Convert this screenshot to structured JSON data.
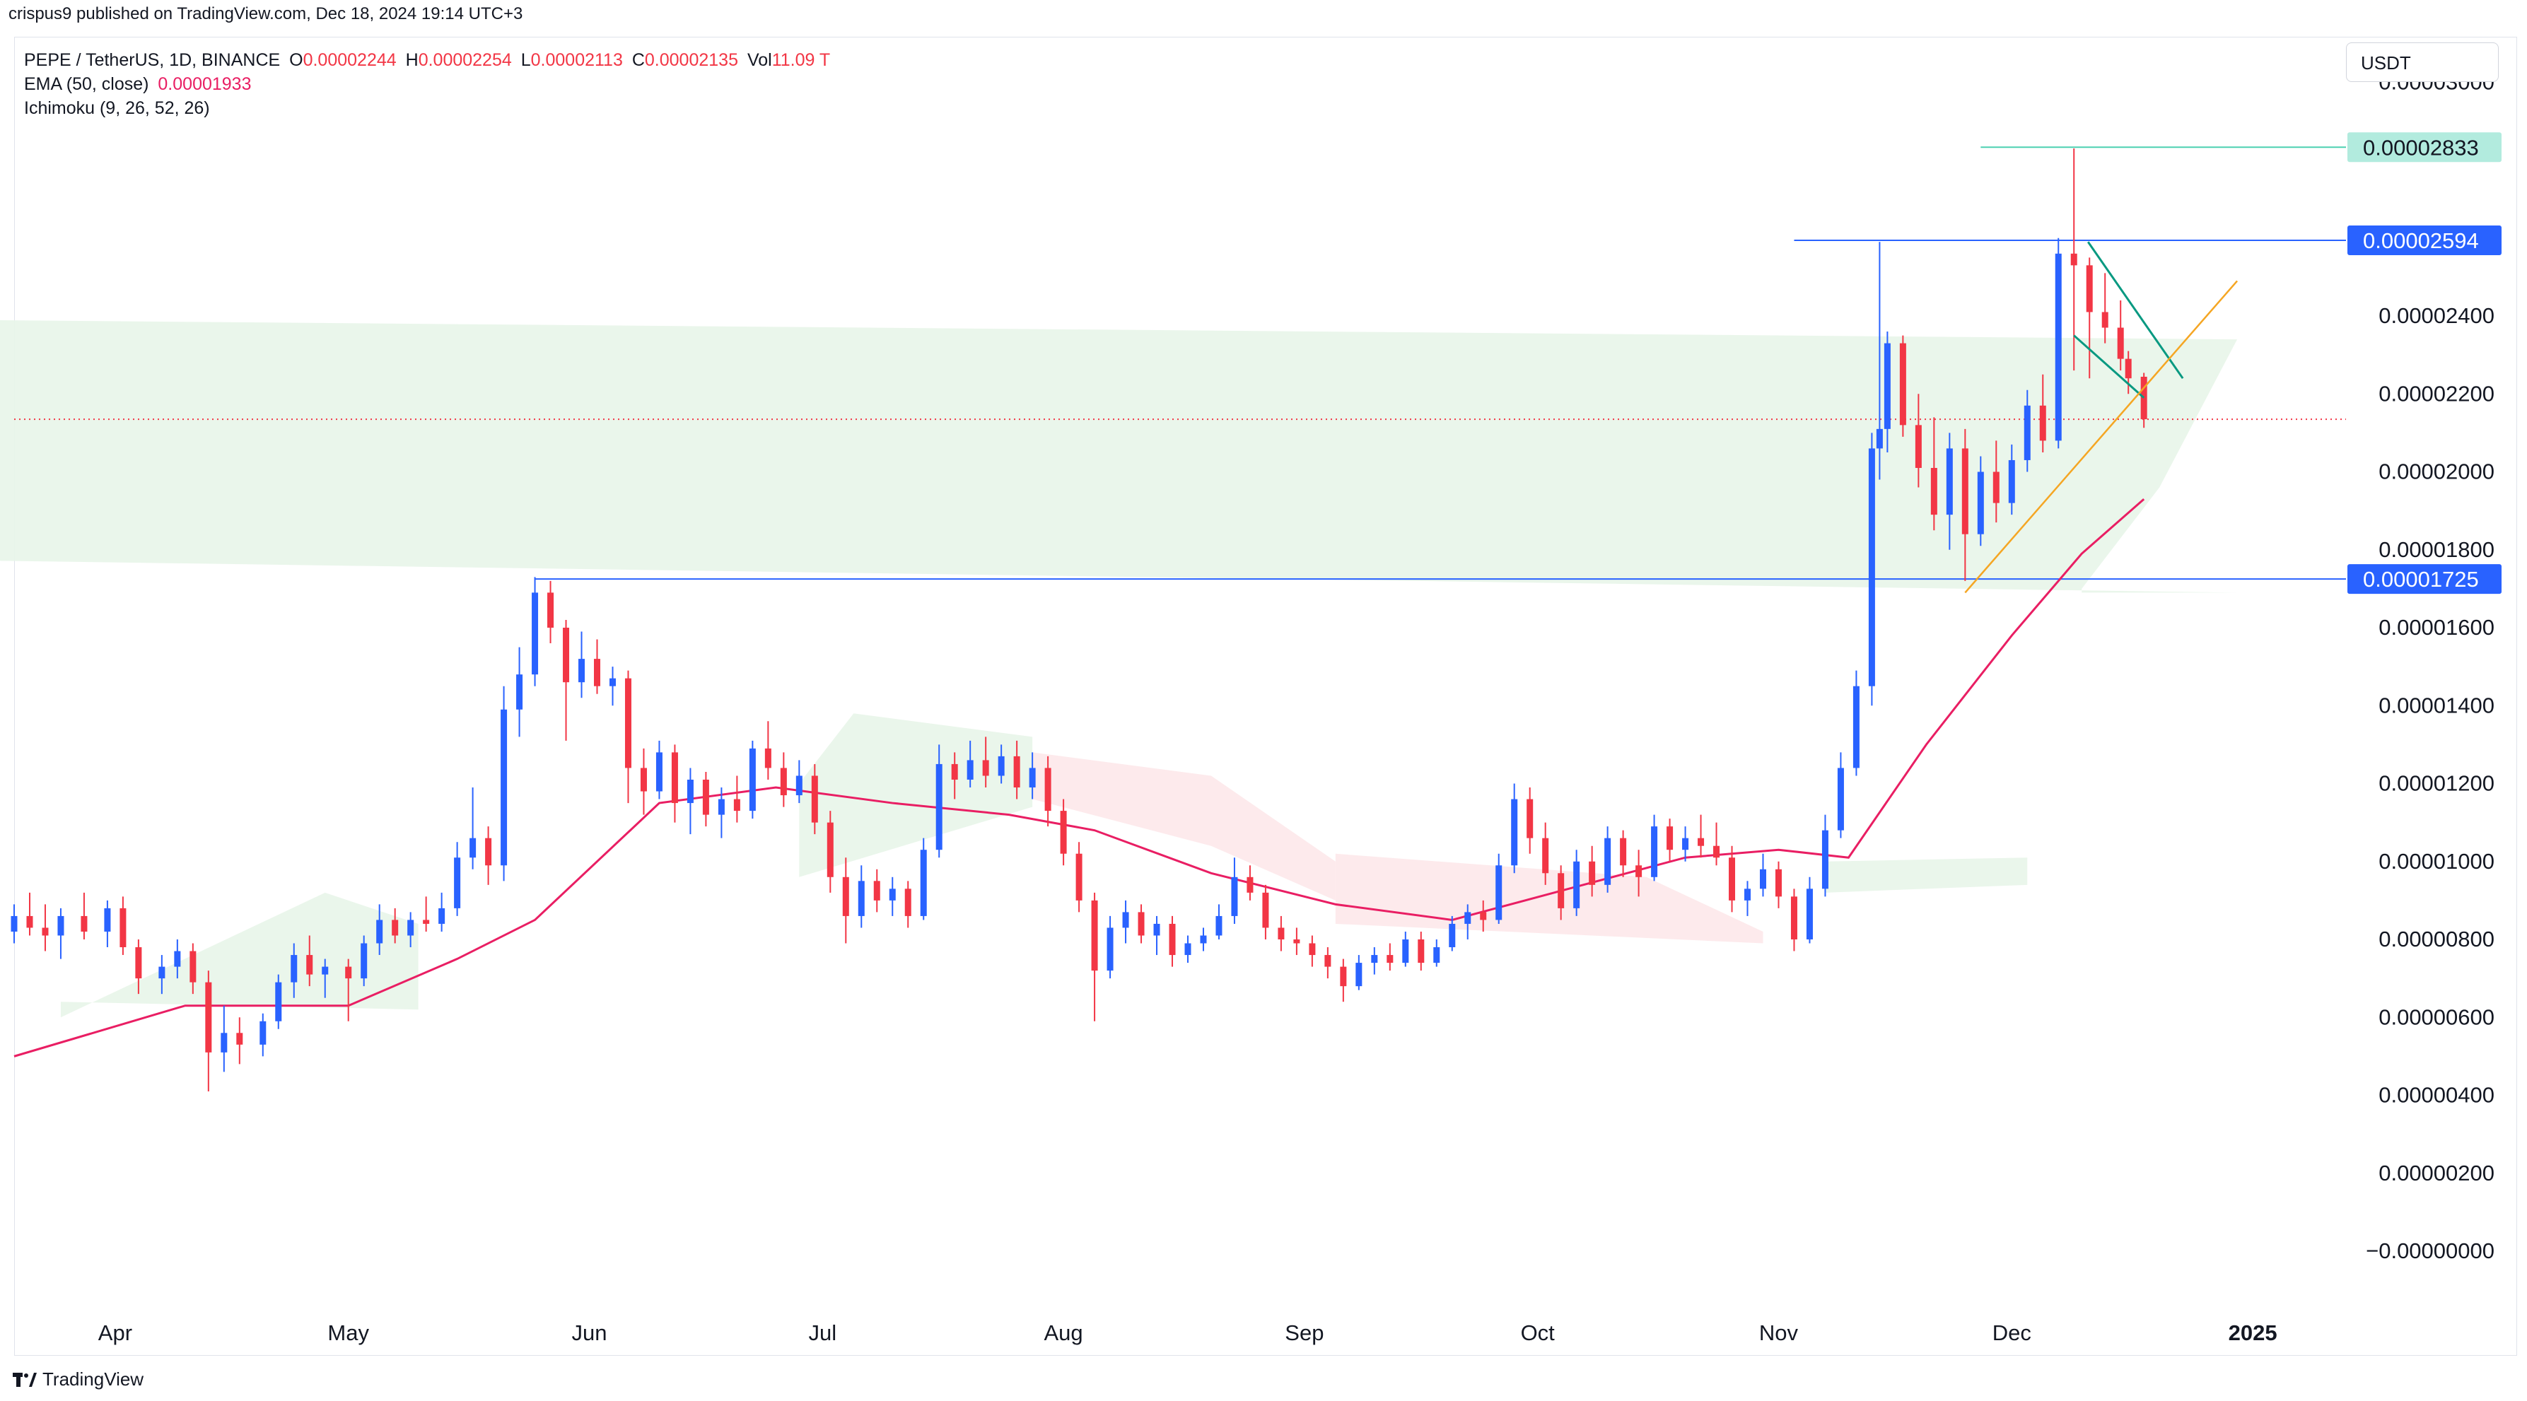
{
  "header": {
    "published": "crispus9 published on TradingView.com, Dec 18, 2024 19:14 UTC+3"
  },
  "legend": {
    "symbol": "PEPE / TetherUS, 1D, BINANCE",
    "open_label": "O",
    "open": "0.00002244",
    "high_label": "H",
    "high": "0.00002254",
    "low_label": "L",
    "low": "0.00002113",
    "close_label": "C",
    "close": "0.00002135",
    "vol_label": "Vol",
    "vol": "11.09 T",
    "ema_label": "EMA (50, close)",
    "ema": "0.00001933",
    "ichimoku_label": "Ichimoku (9, 26, 52, 26)"
  },
  "currency": "USDT",
  "footer": {
    "brand": "TradingView"
  },
  "colors": {
    "up": "#2962ff",
    "down": "#f23645",
    "ema": "#e91e63",
    "level": "#2962ff",
    "high_marker": "#4dd0b1",
    "triangle": "#089981",
    "support": "#f5a623"
  },
  "chart_data": {
    "type": "candlestick",
    "y_range": [
      0,
      3.2e-06
    ],
    "y_ticks": [
      "0.00003000",
      "0.00002400",
      "0.00002200",
      "0.00002000",
      "0.00001800",
      "0.00001600",
      "0.00001400",
      "0.00001200",
      "0.00001000",
      "0.00000800",
      "0.00000600",
      "0.00000400",
      "0.00000200",
      "−0.00000000"
    ],
    "y_tick_values": [
      3e-05,
      2.4e-05,
      2.2e-05,
      2e-05,
      1.8e-05,
      1.6e-05,
      1.4e-05,
      1.2e-05,
      1e-05,
      8e-06,
      6e-06,
      4e-06,
      2e-06,
      0
    ],
    "x_labels": [
      "Apr",
      "May",
      "Jun",
      "Jul",
      "Aug",
      "Sep",
      "Oct",
      "Nov",
      "Dec",
      "2025"
    ],
    "price_labels": [
      {
        "text": "0.00002833",
        "value": 2.833e-05,
        "style": "high"
      },
      {
        "text": "0.00002594",
        "value": 2.594e-05,
        "style": "level"
      },
      {
        "text": "0.00001725",
        "value": 1.725e-05,
        "style": "level"
      }
    ],
    "current_price": 2.135e-05,
    "ema_path": [
      [
        "Mar 19",
        5e-06
      ],
      [
        "Apr 10",
        6.3e-06
      ],
      [
        "May 1",
        6.3e-06
      ],
      [
        "May 15",
        7.5e-06
      ],
      [
        "May 25",
        8.5e-06
      ],
      [
        "Jun 10",
        1.15e-05
      ],
      [
        "Jun 25",
        1.19e-05
      ],
      [
        "Jul 10",
        1.15e-05
      ],
      [
        "Jul 25",
        1.12e-05
      ],
      [
        "Aug 5",
        1.08e-05
      ],
      [
        "Aug 20",
        9.7e-06
      ],
      [
        "Sep 5",
        8.9e-06
      ],
      [
        "Sep 20",
        8.5e-06
      ],
      [
        "Oct 5",
        9.3e-06
      ],
      [
        "Oct 20",
        1.01e-05
      ],
      [
        "Nov 1",
        1.03e-05
      ],
      [
        "Nov 10",
        1.01e-05
      ],
      [
        "Nov 20",
        1.3e-05
      ],
      [
        "Dec 1",
        1.58e-05
      ],
      [
        "Dec 10",
        1.79e-05
      ],
      [
        "Dec 18",
        1.93e-05
      ]
    ],
    "ohlc": [
      [
        "Mar 19",
        8.2e-06,
        8.9e-06,
        7.9e-06,
        8.6e-06
      ],
      [
        "Mar 21",
        8.6e-06,
        9.2e-06,
        8.1e-06,
        8.3e-06
      ],
      [
        "Mar 23",
        8.3e-06,
        8.9e-06,
        7.7e-06,
        8.1e-06
      ],
      [
        "Mar 25",
        8.1e-06,
        8.8e-06,
        7.5e-06,
        8.6e-06
      ],
      [
        "Mar 28",
        8.6e-06,
        9.2e-06,
        8e-06,
        8.2e-06
      ],
      [
        "Mar 31",
        8.2e-06,
        9e-06,
        7.8e-06,
        8.8e-06
      ],
      [
        "Apr 2",
        8.8e-06,
        9.1e-06,
        7.6e-06,
        7.8e-06
      ],
      [
        "Apr 4",
        7.8e-06,
        8e-06,
        6.6e-06,
        7e-06
      ],
      [
        "Apr 7",
        7e-06,
        7.6e-06,
        6.6e-06,
        7.3e-06
      ],
      [
        "Apr 9",
        7.3e-06,
        8e-06,
        7e-06,
        7.7e-06
      ],
      [
        "Apr 11",
        7.7e-06,
        7.9e-06,
        6.6e-06,
        6.9e-06
      ],
      [
        "Apr 13",
        6.9e-06,
        7.2e-06,
        4.1e-06,
        5.1e-06
      ],
      [
        "Apr 15",
        5.1e-06,
        6.3e-06,
        4.6e-06,
        5.6e-06
      ],
      [
        "Apr 17",
        5.6e-06,
        6e-06,
        4.8e-06,
        5.3e-06
      ],
      [
        "Apr 20",
        5.3e-06,
        6.1e-06,
        5e-06,
        5.9e-06
      ],
      [
        "Apr 22",
        5.9e-06,
        7.1e-06,
        5.7e-06,
        6.9e-06
      ],
      [
        "Apr 24",
        6.9e-06,
        7.9e-06,
        6.5e-06,
        7.6e-06
      ],
      [
        "Apr 26",
        7.6e-06,
        8.1e-06,
        6.8e-06,
        7.1e-06
      ],
      [
        "Apr 28",
        7.1e-06,
        7.5e-06,
        6.5e-06,
        7.3e-06
      ],
      [
        "May 1",
        7.3e-06,
        7.5e-06,
        5.9e-06,
        7e-06
      ],
      [
        "May 3",
        7e-06,
        8.1e-06,
        6.8e-06,
        7.9e-06
      ],
      [
        "May 5",
        7.9e-06,
        8.9e-06,
        7.6e-06,
        8.5e-06
      ],
      [
        "May 7",
        8.5e-06,
        8.8e-06,
        7.9e-06,
        8.1e-06
      ],
      [
        "May 9",
        8.1e-06,
        8.7e-06,
        7.8e-06,
        8.5e-06
      ],
      [
        "May 11",
        8.5e-06,
        9.1e-06,
        8.2e-06,
        8.4e-06
      ],
      [
        "May 13",
        8.4e-06,
        9.2e-06,
        8.2e-06,
        8.8e-06
      ],
      [
        "May 15",
        8.8e-06,
        1.05e-05,
        8.6e-06,
        1.01e-05
      ],
      [
        "May 17",
        1.01e-05,
        1.19e-05,
        9.8e-06,
        1.06e-05
      ],
      [
        "May 19",
        1.06e-05,
        1.09e-05,
        9.4e-06,
        9.9e-06
      ],
      [
        "May 21",
        9.9e-06,
        1.45e-05,
        9.5e-06,
        1.39e-05
      ],
      [
        "May 23",
        1.39e-05,
        1.55e-05,
        1.32e-05,
        1.48e-05
      ],
      [
        "May 25",
        1.48e-05,
        1.73e-05,
        1.45e-05,
        1.69e-05
      ],
      [
        "May 27",
        1.69e-05,
        1.72e-05,
        1.56e-05,
        1.6e-05
      ],
      [
        "May 29",
        1.6e-05,
        1.62e-05,
        1.31e-05,
        1.46e-05
      ],
      [
        "May 31",
        1.46e-05,
        1.59e-05,
        1.42e-05,
        1.52e-05
      ],
      [
        "Jun 2",
        1.52e-05,
        1.57e-05,
        1.43e-05,
        1.45e-05
      ],
      [
        "Jun 4",
        1.45e-05,
        1.5e-05,
        1.4e-05,
        1.47e-05
      ],
      [
        "Jun 6",
        1.47e-05,
        1.49e-05,
        1.15e-05,
        1.24e-05
      ],
      [
        "Jun 8",
        1.24e-05,
        1.29e-05,
        1.12e-05,
        1.18e-05
      ],
      [
        "Jun 10",
        1.18e-05,
        1.31e-05,
        1.16e-05,
        1.28e-05
      ],
      [
        "Jun 12",
        1.28e-05,
        1.3e-05,
        1.1e-05,
        1.15e-05
      ],
      [
        "Jun 14",
        1.15e-05,
        1.24e-05,
        1.07e-05,
        1.21e-05
      ],
      [
        "Jun 16",
        1.21e-05,
        1.23e-05,
        1.09e-05,
        1.12e-05
      ],
      [
        "Jun 18",
        1.12e-05,
        1.19e-05,
        1.06e-05,
        1.16e-05
      ],
      [
        "Jun 20",
        1.16e-05,
        1.22e-05,
        1.1e-05,
        1.13e-05
      ],
      [
        "Jun 22",
        1.13e-05,
        1.31e-05,
        1.11e-05,
        1.29e-05
      ],
      [
        "Jun 24",
        1.29e-05,
        1.36e-05,
        1.21e-05,
        1.24e-05
      ],
      [
        "Jun 26",
        1.24e-05,
        1.28e-05,
        1.14e-05,
        1.17e-05
      ],
      [
        "Jun 28",
        1.17e-05,
        1.26e-05,
        1.15e-05,
        1.22e-05
      ],
      [
        "Jun 30",
        1.22e-05,
        1.25e-05,
        1.07e-05,
        1.1e-05
      ],
      [
        "Jul 2",
        1.1e-05,
        1.13e-05,
        9.2e-06,
        9.6e-06
      ],
      [
        "Jul 4",
        9.6e-06,
        1.01e-05,
        7.9e-06,
        8.6e-06
      ],
      [
        "Jul 6",
        8.6e-06,
        9.9e-06,
        8.3e-06,
        9.5e-06
      ],
      [
        "Jul 8",
        9.5e-06,
        9.8e-06,
        8.7e-06,
        9e-06
      ],
      [
        "Jul 10",
        9e-06,
        9.6e-06,
        8.6e-06,
        9.3e-06
      ],
      [
        "Jul 12",
        9.3e-06,
        9.5e-06,
        8.3e-06,
        8.6e-06
      ],
      [
        "Jul 14",
        8.6e-06,
        1.06e-05,
        8.5e-06,
        1.03e-05
      ],
      [
        "Jul 16",
        1.03e-05,
        1.3e-05,
        1.01e-05,
        1.25e-05
      ],
      [
        "Jul 18",
        1.25e-05,
        1.28e-05,
        1.16e-05,
        1.21e-05
      ],
      [
        "Jul 20",
        1.21e-05,
        1.31e-05,
        1.19e-05,
        1.26e-05
      ],
      [
        "Jul 22",
        1.26e-05,
        1.32e-05,
        1.19e-05,
        1.22e-05
      ],
      [
        "Jul 24",
        1.22e-05,
        1.3e-05,
        1.2e-05,
        1.27e-05
      ],
      [
        "Jul 26",
        1.27e-05,
        1.31e-05,
        1.16e-05,
        1.19e-05
      ],
      [
        "Jul 28",
        1.19e-05,
        1.28e-05,
        1.16e-05,
        1.24e-05
      ],
      [
        "Jul 30",
        1.24e-05,
        1.27e-05,
        1.09e-05,
        1.13e-05
      ],
      [
        "Aug 1",
        1.13e-05,
        1.16e-05,
        9.9e-06,
        1.02e-05
      ],
      [
        "Aug 3",
        1.02e-05,
        1.05e-05,
        8.7e-06,
        9e-06
      ],
      [
        "Aug 5",
        9e-06,
        9.2e-06,
        5.9e-06,
        7.2e-06
      ],
      [
        "Aug 7",
        7.2e-06,
        8.6e-06,
        7e-06,
        8.3e-06
      ],
      [
        "Aug 9",
        8.3e-06,
        9e-06,
        7.9e-06,
        8.7e-06
      ],
      [
        "Aug 11",
        8.7e-06,
        8.9e-06,
        7.9e-06,
        8.1e-06
      ],
      [
        "Aug 13",
        8.1e-06,
        8.6e-06,
        7.6e-06,
        8.4e-06
      ],
      [
        "Aug 15",
        8.4e-06,
        8.6e-06,
        7.3e-06,
        7.6e-06
      ],
      [
        "Aug 17",
        7.6e-06,
        8.1e-06,
        7.4e-06,
        7.9e-06
      ],
      [
        "Aug 19",
        7.9e-06,
        8.3e-06,
        7.7e-06,
        8.1e-06
      ],
      [
        "Aug 21",
        8.1e-06,
        8.9e-06,
        8e-06,
        8.6e-06
      ],
      [
        "Aug 23",
        8.6e-06,
        1.01e-05,
        8.4e-06,
        9.6e-06
      ],
      [
        "Aug 25",
        9.6e-06,
        9.9e-06,
        9e-06,
        9.2e-06
      ],
      [
        "Aug 27",
        9.2e-06,
        9.4e-06,
        8e-06,
        8.3e-06
      ],
      [
        "Aug 29",
        8.3e-06,
        8.6e-06,
        7.7e-06,
        8e-06
      ],
      [
        "Aug 31",
        8e-06,
        8.3e-06,
        7.6e-06,
        7.9e-06
      ],
      [
        "Sep 2",
        7.9e-06,
        8.1e-06,
        7.3e-06,
        7.6e-06
      ],
      [
        "Sep 4",
        7.6e-06,
        7.8e-06,
        7e-06,
        7.3e-06
      ],
      [
        "Sep 6",
        7.3e-06,
        7.5e-06,
        6.4e-06,
        6.8e-06
      ],
      [
        "Sep 8",
        6.8e-06,
        7.6e-06,
        6.7e-06,
        7.4e-06
      ],
      [
        "Sep 10",
        7.4e-06,
        7.8e-06,
        7.1e-06,
        7.6e-06
      ],
      [
        "Sep 12",
        7.6e-06,
        7.9e-06,
        7.2e-06,
        7.4e-06
      ],
      [
        "Sep 14",
        7.4e-06,
        8.2e-06,
        7.3e-06,
        8e-06
      ],
      [
        "Sep 16",
        8e-06,
        8.2e-06,
        7.2e-06,
        7.4e-06
      ],
      [
        "Sep 18",
        7.4e-06,
        8e-06,
        7.3e-06,
        7.8e-06
      ],
      [
        "Sep 20",
        7.8e-06,
        8.6e-06,
        7.7e-06,
        8.4e-06
      ],
      [
        "Sep 22",
        8.4e-06,
        8.9e-06,
        8e-06,
        8.7e-06
      ],
      [
        "Sep 24",
        8.7e-06,
        9e-06,
        8.2e-06,
        8.5e-06
      ],
      [
        "Sep 26",
        8.5e-06,
        1.02e-05,
        8.4e-06,
        9.9e-06
      ],
      [
        "Sep 28",
        9.9e-06,
        1.2e-05,
        9.7e-06,
        1.16e-05
      ],
      [
        "Sep 30",
        1.16e-05,
        1.19e-05,
        1.02e-05,
        1.06e-05
      ],
      [
        "Oct 2",
        1.06e-05,
        1.1e-05,
        9.4e-06,
        9.7e-06
      ],
      [
        "Oct 4",
        9.7e-06,
        9.9e-06,
        8.5e-06,
        8.8e-06
      ],
      [
        "Oct 6",
        8.8e-06,
        1.03e-05,
        8.6e-06,
        1e-05
      ],
      [
        "Oct 8",
        1e-05,
        1.04e-05,
        9.1e-06,
        9.4e-06
      ],
      [
        "Oct 10",
        9.4e-06,
        1.09e-05,
        9.2e-06,
        1.06e-05
      ],
      [
        "Oct 12",
        1.06e-05,
        1.08e-05,
        9.6e-06,
        9.9e-06
      ],
      [
        "Oct 14",
        9.9e-06,
        1.03e-05,
        9.1e-06,
        9.6e-06
      ],
      [
        "Oct 16",
        9.6e-06,
        1.12e-05,
        9.5e-06,
        1.09e-05
      ],
      [
        "Oct 18",
        1.09e-05,
        1.11e-05,
        1e-05,
        1.03e-05
      ],
      [
        "Oct 20",
        1.03e-05,
        1.09e-05,
        1e-05,
        1.06e-05
      ],
      [
        "Oct 22",
        1.06e-05,
        1.12e-05,
        1.01e-05,
        1.04e-05
      ],
      [
        "Oct 24",
        1.04e-05,
        1.1e-05,
        9.9e-06,
        1.01e-05
      ],
      [
        "Oct 26",
        1.01e-05,
        1.04e-05,
        8.7e-06,
        9e-06
      ],
      [
        "Oct 28",
        9e-06,
        9.5e-06,
        8.6e-06,
        9.3e-06
      ],
      [
        "Oct 30",
        9.3e-06,
        1.02e-05,
        9.1e-06,
        9.8e-06
      ],
      [
        "Nov 1",
        9.8e-06,
        1e-05,
        8.8e-06,
        9.1e-06
      ],
      [
        "Nov 3",
        9.1e-06,
        9.3e-06,
        7.7e-06,
        8e-06
      ],
      [
        "Nov 5",
        8e-06,
        9.6e-06,
        7.9e-06,
        9.3e-06
      ],
      [
        "Nov 7",
        9.3e-06,
        1.12e-05,
        9.1e-06,
        1.08e-05
      ],
      [
        "Nov 9",
        1.08e-05,
        1.28e-05,
        1.06e-05,
        1.24e-05
      ],
      [
        "Nov 11",
        1.24e-05,
        1.49e-05,
        1.22e-05,
        1.45e-05
      ],
      [
        "Nov 13",
        1.45e-05,
        2.1e-05,
        1.4e-05,
        2.06e-05
      ],
      [
        "Nov 14",
        2.06e-05,
        2.59e-05,
        1.98e-05,
        2.11e-05
      ],
      [
        "Nov 15",
        2.11e-05,
        2.36e-05,
        2.05e-05,
        2.33e-05
      ],
      [
        "Nov 17",
        2.33e-05,
        2.35e-05,
        2.09e-05,
        2.12e-05
      ],
      [
        "Nov 19",
        2.12e-05,
        2.2e-05,
        1.96e-05,
        2.01e-05
      ],
      [
        "Nov 21",
        2.01e-05,
        2.14e-05,
        1.85e-05,
        1.89e-05
      ],
      [
        "Nov 23",
        1.89e-05,
        2.1e-05,
        1.8e-05,
        2.06e-05
      ],
      [
        "Nov 25",
        2.06e-05,
        2.11e-05,
        1.72e-05,
        1.84e-05
      ],
      [
        "Nov 27",
        1.84e-05,
        2.04e-05,
        1.81e-05,
        2e-05
      ],
      [
        "Nov 29",
        2e-05,
        2.08e-05,
        1.87e-05,
        1.92e-05
      ],
      [
        "Dec 1",
        1.92e-05,
        2.07e-05,
        1.89e-05,
        2.03e-05
      ],
      [
        "Dec 3",
        2.03e-05,
        2.21e-05,
        2e-05,
        2.17e-05
      ],
      [
        "Dec 5",
        2.17e-05,
        2.25e-05,
        2.05e-05,
        2.08e-05
      ],
      [
        "Dec 7",
        2.08e-05,
        2.6e-05,
        2.06e-05,
        2.56e-05
      ],
      [
        "Dec 9",
        2.56e-05,
        2.83e-05,
        2.26e-05,
        2.53e-05
      ],
      [
        "Dec 11",
        2.53e-05,
        2.55e-05,
        2.24e-05,
        2.41e-05
      ],
      [
        "Dec 13",
        2.41e-05,
        2.51e-05,
        2.33e-05,
        2.37e-05
      ],
      [
        "Dec 15",
        2.37e-05,
        2.44e-05,
        2.26e-05,
        2.29e-05
      ],
      [
        "Dec 16",
        2.29e-05,
        2.31e-05,
        2.2e-05,
        2.24e-05
      ],
      [
        "Dec 18",
        2.244e-05,
        2.254e-05,
        2.113e-05,
        2.135e-05
      ]
    ]
  }
}
